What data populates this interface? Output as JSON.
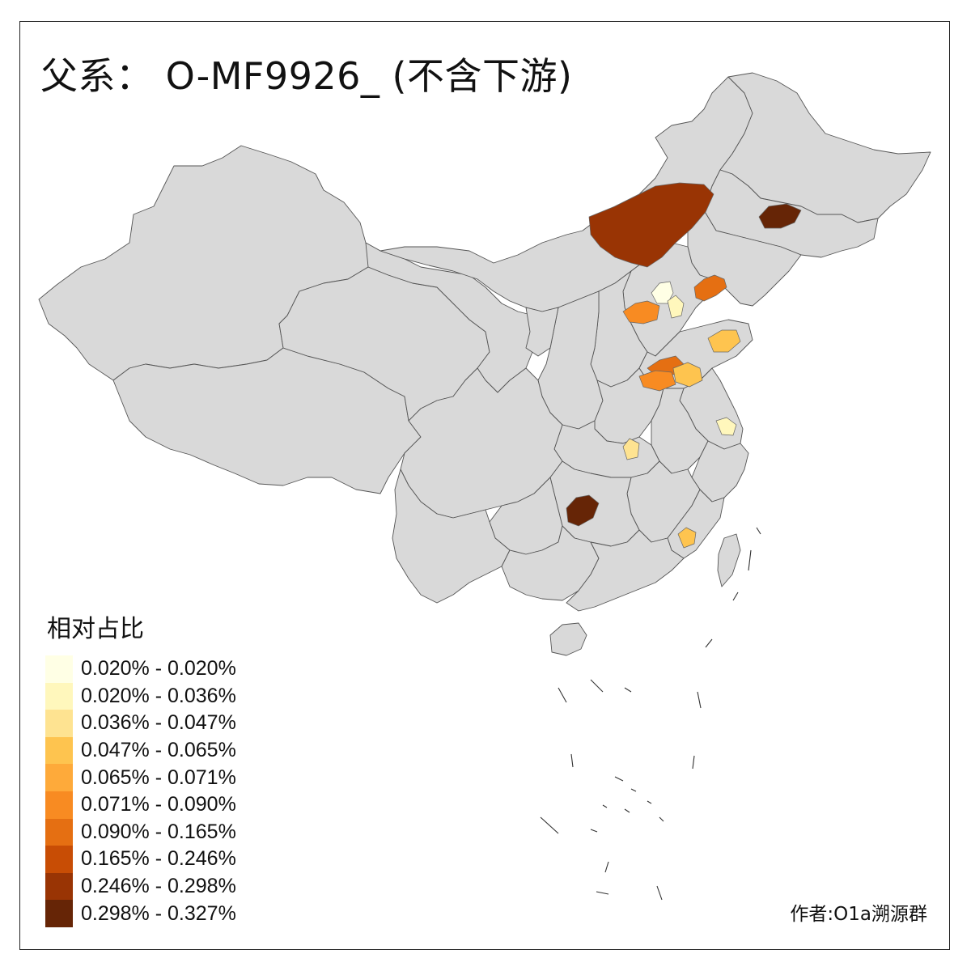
{
  "title": "父系： O-MF9926_ (不含下游)",
  "legend": {
    "title": "相对占比",
    "bins": [
      {
        "label": "0.020% - 0.020%",
        "color": "#ffffe5"
      },
      {
        "label": "0.020% - 0.036%",
        "color": "#fff7bc"
      },
      {
        "label": "0.036% - 0.047%",
        "color": "#fee391"
      },
      {
        "label": "0.047% - 0.065%",
        "color": "#fec44f"
      },
      {
        "label": "0.065% - 0.071%",
        "color": "#feaa3a"
      },
      {
        "label": "0.071% - 0.090%",
        "color": "#f88b22"
      },
      {
        "label": "0.090% - 0.165%",
        "color": "#e56f12"
      },
      {
        "label": "0.165% - 0.246%",
        "color": "#c84d05"
      },
      {
        "label": "0.246% - 0.298%",
        "color": "#993404"
      },
      {
        "label": "0.298% - 0.327%",
        "color": "#662506"
      }
    ]
  },
  "credit": "作者:O1a溯源群",
  "colors": {
    "no_data": "#d9d9d9",
    "border": "#555555"
  }
}
